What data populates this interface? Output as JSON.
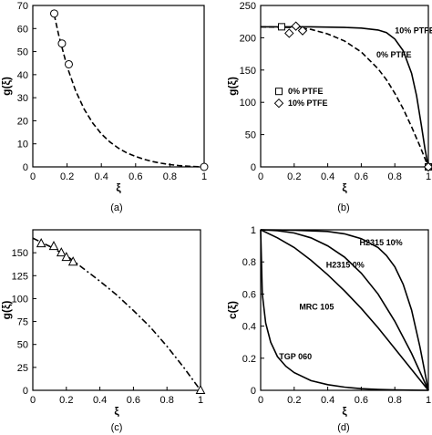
{
  "chart_data": [
    {
      "id": "a",
      "type": "line",
      "panel_label": "(a)",
      "xlabel": "ξ",
      "ylabel": "g(ξ)",
      "xlim": [
        0,
        1
      ],
      "ylim": [
        0,
        70
      ],
      "xticks": [
        "0",
        "0.2",
        "0.4",
        "0.6",
        "0.8",
        "1"
      ],
      "yticks": [
        "0",
        "10",
        "20",
        "30",
        "40",
        "50",
        "60",
        "70"
      ],
      "grid": false,
      "series": [
        {
          "style": "dashed",
          "x": [
            0.125,
            0.15,
            0.2,
            0.25,
            0.3,
            0.35,
            0.4,
            0.45,
            0.5,
            0.55,
            0.6,
            0.65,
            0.7,
            0.75,
            0.8,
            0.85,
            0.9,
            0.95,
            1.0
          ],
          "y": [
            66,
            57.5,
            43.5,
            33,
            25,
            19,
            14.3,
            10.8,
            8.1,
            6.0,
            4.5,
            3.3,
            2.3,
            1.6,
            1.0,
            0.6,
            0.3,
            0.1,
            0
          ]
        }
      ],
      "markers": [
        {
          "shape": "circle",
          "x": 0.125,
          "y": 66.5
        },
        {
          "shape": "circle",
          "x": 0.17,
          "y": 53.5
        },
        {
          "shape": "circle",
          "x": 0.21,
          "y": 44.5
        },
        {
          "shape": "circle",
          "x": 1.0,
          "y": 0
        }
      ]
    },
    {
      "id": "b",
      "type": "line",
      "panel_label": "(b)",
      "xlabel": "ξ",
      "ylabel": "g(ξ)",
      "xlim": [
        0,
        1
      ],
      "ylim": [
        0,
        250
      ],
      "xticks": [
        "0",
        "0.2",
        "0.4",
        "0.6",
        "0.8",
        "1"
      ],
      "yticks": [
        "0",
        "50",
        "100",
        "150",
        "200",
        "250"
      ],
      "grid": false,
      "series": [
        {
          "name": "10% PTFE",
          "style": "solid",
          "x": [
            0,
            0.3,
            0.5,
            0.6,
            0.7,
            0.75,
            0.8,
            0.85,
            0.9,
            0.93,
            0.96,
            0.98,
            1.0
          ],
          "y": [
            217,
            217,
            216,
            215,
            212,
            208,
            198,
            180,
            145,
            110,
            62,
            28,
            0
          ]
        },
        {
          "name": "0% PTFE",
          "style": "dashed",
          "x": [
            0,
            0.2,
            0.3,
            0.4,
            0.5,
            0.6,
            0.7,
            0.75,
            0.8,
            0.85,
            0.9,
            0.95,
            1.0
          ],
          "y": [
            217,
            216,
            213,
            206,
            195,
            178,
            152,
            135,
            114,
            90,
            62,
            32,
            0
          ]
        }
      ],
      "markers": [
        {
          "shape": "square",
          "series": "0% PTFE",
          "x": 0.125,
          "y": 217
        },
        {
          "shape": "square",
          "series": "0% PTFE",
          "x": 1.0,
          "y": 0
        },
        {
          "shape": "diamond",
          "series": "10% PTFE",
          "x": 0.17,
          "y": 207
        },
        {
          "shape": "diamond",
          "series": "10% PTFE",
          "x": 0.21,
          "y": 218
        },
        {
          "shape": "diamond",
          "series": "10% PTFE",
          "x": 0.25,
          "y": 211
        },
        {
          "shape": "diamond",
          "series": "10% PTFE",
          "x": 1.0,
          "y": 0
        }
      ],
      "legend": {
        "placement": "center-left",
        "entries": [
          {
            "marker": "square",
            "label": "0% PTFE"
          },
          {
            "marker": "diamond",
            "label": "10% PTFE"
          }
        ]
      },
      "annotations": [
        {
          "text": "10% PTFE",
          "x": 0.8,
          "y": 211
        },
        {
          "text": "0% PTFE",
          "x": 0.69,
          "y": 174
        }
      ]
    },
    {
      "id": "c",
      "type": "line",
      "panel_label": "(c)",
      "xlabel": "ξ",
      "ylabel": "g(ξ)",
      "xlim": [
        0,
        1
      ],
      "ylim": [
        0,
        175
      ],
      "xticks": [
        "0",
        "0.2",
        "0.4",
        "0.6",
        "0.8",
        "1"
      ],
      "yticks": [
        "0",
        "25",
        "50",
        "75",
        "100",
        "125",
        "150"
      ],
      "grid": false,
      "series": [
        {
          "style": "dash-dot",
          "x": [
            0,
            0.1,
            0.2,
            0.3,
            0.4,
            0.5,
            0.6,
            0.7,
            0.8,
            0.9,
            1.0
          ],
          "y": [
            166,
            157,
            147,
            133,
            119,
            104,
            87,
            69,
            48,
            25,
            0
          ]
        }
      ],
      "markers": [
        {
          "shape": "triangle",
          "x": 0.05,
          "y": 160
        },
        {
          "shape": "triangle",
          "x": 0.125,
          "y": 157
        },
        {
          "shape": "triangle",
          "x": 0.17,
          "y": 150
        },
        {
          "shape": "triangle",
          "x": 0.2,
          "y": 145
        },
        {
          "shape": "triangle",
          "x": 0.24,
          "y": 140
        },
        {
          "shape": "triangle",
          "x": 1.0,
          "y": 0
        }
      ]
    },
    {
      "id": "d",
      "type": "line",
      "panel_label": "(d)",
      "xlabel": "ξ",
      "ylabel": "c(ξ)",
      "xlim": [
        0,
        1
      ],
      "ylim": [
        0,
        1
      ],
      "xticks": [
        "0",
        "0.2",
        "0.4",
        "0.6",
        "0.8",
        "1"
      ],
      "yticks": [
        "0",
        "0.2",
        "0.4",
        "0.6",
        "0.8",
        "1"
      ],
      "grid": false,
      "series": [
        {
          "name": "H2315 10%",
          "style": "solid",
          "x": [
            0,
            0.2,
            0.4,
            0.5,
            0.6,
            0.7,
            0.75,
            0.8,
            0.85,
            0.9,
            0.95,
            1.0
          ],
          "y": [
            1,
            0.998,
            0.99,
            0.975,
            0.945,
            0.89,
            0.84,
            0.77,
            0.66,
            0.5,
            0.27,
            0
          ]
        },
        {
          "name": "H2315 0%",
          "style": "solid",
          "x": [
            0,
            0.1,
            0.2,
            0.3,
            0.4,
            0.5,
            0.6,
            0.7,
            0.8,
            0.9,
            1.0
          ],
          "y": [
            1,
            0.995,
            0.98,
            0.95,
            0.9,
            0.83,
            0.73,
            0.6,
            0.43,
            0.23,
            0
          ]
        },
        {
          "name": "MRC 105",
          "style": "solid",
          "x": [
            0,
            0.1,
            0.2,
            0.3,
            0.4,
            0.5,
            0.6,
            0.7,
            0.8,
            0.9,
            1.0
          ],
          "y": [
            1,
            0.95,
            0.89,
            0.81,
            0.72,
            0.62,
            0.51,
            0.39,
            0.26,
            0.13,
            0
          ]
        },
        {
          "name": "TGP 060",
          "style": "solid",
          "x": [
            0,
            0.01,
            0.03,
            0.06,
            0.1,
            0.15,
            0.2,
            0.3,
            0.4,
            0.5,
            0.6,
            0.7,
            0.8,
            0.9,
            1.0
          ],
          "y": [
            1,
            0.6,
            0.42,
            0.3,
            0.21,
            0.15,
            0.11,
            0.06,
            0.035,
            0.02,
            0.01,
            0.005,
            0.002,
            0.001,
            0
          ]
        }
      ],
      "annotations": [
        {
          "text": "H2315 10%",
          "x": 0.59,
          "y": 0.92
        },
        {
          "text": "H2315 0%",
          "x": 0.39,
          "y": 0.78
        },
        {
          "text": "MRC 105",
          "x": 0.23,
          "y": 0.52
        },
        {
          "text": "TGP 060",
          "x": 0.11,
          "y": 0.21
        }
      ]
    }
  ]
}
